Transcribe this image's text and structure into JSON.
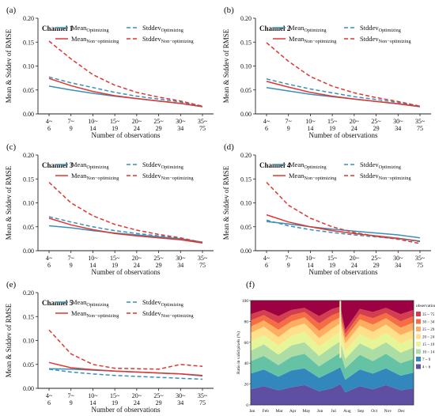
{
  "chart_data": [
    {
      "panel_label": "(a)",
      "type": "line",
      "title": "Channel 1",
      "xlabel": "Number of observations",
      "ylabel": "Mean & Stddev of RMSE",
      "ylim": [
        0,
        0.2
      ],
      "yticks": [
        "0.00",
        "0.05",
        "0.10",
        "0.15",
        "0.20"
      ],
      "categories": [
        "4~6",
        "7~9",
        "10~14",
        "15~19",
        "20~24",
        "25~29",
        "30~34",
        "35~75"
      ],
      "tick_top": [
        "4~",
        "7~",
        "10~",
        "15~",
        "20~",
        "25~",
        "30~",
        "35~"
      ],
      "tick_bottom": [
        "6",
        "9",
        "14",
        "19",
        "24",
        "29",
        "34",
        "75"
      ],
      "legend": {
        "mean_opt": "Mean",
        "mean_opt_sub": "Optimizing",
        "mean_non": "Mean",
        "mean_non_sub": "Non−optimizing",
        "std_opt": "Stddev",
        "std_opt_sub": "Optimizing",
        "std_non": "Stddev",
        "std_non_sub": "Non−optimizing"
      },
      "series": [
        {
          "key": "mean_opt",
          "color": "#3a8fb7",
          "dash": false,
          "values": [
            0.058,
            0.05,
            0.043,
            0.037,
            0.032,
            0.027,
            0.022,
            0.015
          ]
        },
        {
          "key": "mean_non",
          "color": "#e03530",
          "dash": false,
          "values": [
            0.074,
            0.059,
            0.047,
            0.038,
            0.032,
            0.027,
            0.022,
            0.015
          ]
        },
        {
          "key": "std_opt",
          "color": "#3a8fb7",
          "dash": true,
          "values": [
            0.077,
            0.065,
            0.055,
            0.045,
            0.037,
            0.031,
            0.025,
            0.016
          ]
        },
        {
          "key": "std_non",
          "color": "#e03530",
          "dash": true,
          "values": [
            0.152,
            0.115,
            0.082,
            0.06,
            0.045,
            0.035,
            0.027,
            0.016
          ]
        }
      ]
    },
    {
      "panel_label": "(b)",
      "type": "line",
      "title": "Channel 2",
      "xlabel": "Number of observations",
      "ylabel": "Mean & Stddev of RMSE",
      "ylim": [
        0,
        0.2
      ],
      "yticks": [
        "0.00",
        "0.05",
        "0.10",
        "0.15",
        "0.20"
      ],
      "categories": [
        "4~6",
        "7~9",
        "10~14",
        "15~19",
        "20~24",
        "25~29",
        "30~34",
        "35~75"
      ],
      "tick_top": [
        "4~",
        "7~",
        "10~",
        "15~",
        "20~",
        "25~",
        "30~",
        "35~"
      ],
      "tick_bottom": [
        "6",
        "9",
        "14",
        "19",
        "24",
        "29",
        "34",
        "75"
      ],
      "legend": {
        "mean_opt": "Mean",
        "mean_opt_sub": "Optimizing",
        "mean_non": "Mean",
        "mean_non_sub": "Non−optimizing",
        "std_opt": "Stddev",
        "std_opt_sub": "Optimizing",
        "std_non": "Stddev",
        "std_non_sub": "Non−optimizing"
      },
      "series": [
        {
          "key": "mean_opt",
          "color": "#3a8fb7",
          "dash": false,
          "values": [
            0.055,
            0.048,
            0.041,
            0.036,
            0.031,
            0.026,
            0.021,
            0.015
          ]
        },
        {
          "key": "mean_non",
          "color": "#e03530",
          "dash": false,
          "values": [
            0.068,
            0.056,
            0.045,
            0.037,
            0.031,
            0.026,
            0.021,
            0.015
          ]
        },
        {
          "key": "std_opt",
          "color": "#3a8fb7",
          "dash": true,
          "values": [
            0.073,
            0.062,
            0.052,
            0.044,
            0.036,
            0.03,
            0.024,
            0.016
          ]
        },
        {
          "key": "std_non",
          "color": "#e03530",
          "dash": true,
          "values": [
            0.149,
            0.11,
            0.078,
            0.058,
            0.044,
            0.034,
            0.026,
            0.016
          ]
        }
      ]
    },
    {
      "panel_label": "(c)",
      "type": "line",
      "title": "Channel 3",
      "xlabel": "Number of observations",
      "ylabel": "Mean & Stddev of RMSE",
      "ylim": [
        0,
        0.2
      ],
      "yticks": [
        "0.00",
        "0.05",
        "0.10",
        "0.15",
        "0.20"
      ],
      "categories": [
        "4~6",
        "7~9",
        "10~14",
        "15~19",
        "20~24",
        "25~29",
        "30~34",
        "35~75"
      ],
      "tick_top": [
        "4~",
        "7~",
        "10~",
        "15~",
        "20~",
        "25~",
        "30~",
        "35~"
      ],
      "tick_bottom": [
        "6",
        "9",
        "14",
        "19",
        "24",
        "29",
        "34",
        "75"
      ],
      "legend": {
        "mean_opt": "Mean",
        "mean_opt_sub": "Optimizing",
        "mean_non": "Mean",
        "mean_non_sub": "Non−optimizing",
        "std_opt": "Stddev",
        "std_opt_sub": "Optimizing",
        "std_non": "Stddev",
        "std_non_sub": "Non−optimizing"
      },
      "series": [
        {
          "key": "mean_opt",
          "color": "#3a8fb7",
          "dash": false,
          "values": [
            0.052,
            0.048,
            0.042,
            0.037,
            0.033,
            0.029,
            0.025,
            0.018
          ]
        },
        {
          "key": "mean_non",
          "color": "#e03530",
          "dash": false,
          "values": [
            0.068,
            0.054,
            0.044,
            0.036,
            0.031,
            0.027,
            0.023,
            0.016
          ]
        },
        {
          "key": "std_opt",
          "color": "#3a8fb7",
          "dash": true,
          "values": [
            0.071,
            0.06,
            0.05,
            0.042,
            0.036,
            0.031,
            0.026,
            0.017
          ]
        },
        {
          "key": "std_non",
          "color": "#e03530",
          "dash": true,
          "values": [
            0.143,
            0.1,
            0.073,
            0.055,
            0.043,
            0.034,
            0.027,
            0.017
          ]
        }
      ]
    },
    {
      "panel_label": "(d)",
      "type": "line",
      "title": "Channel 4",
      "xlabel": "Number of observations",
      "ylabel": "Mean & Stddev of RMSE",
      "ylim": [
        0,
        0.2
      ],
      "yticks": [
        "0.00",
        "0.05",
        "0.10",
        "0.15",
        "0.20"
      ],
      "categories": [
        "4~6",
        "7~9",
        "10~14",
        "15~19",
        "20~24",
        "25~29",
        "30~34",
        "35~75"
      ],
      "tick_top": [
        "4~",
        "7~",
        "10~",
        "15~",
        "20~",
        "25~",
        "30~",
        "35~"
      ],
      "tick_bottom": [
        "6",
        "9",
        "14",
        "19",
        "24",
        "29",
        "34",
        "75"
      ],
      "legend": {
        "mean_opt": "Mean",
        "mean_opt_sub": "Optimizing",
        "mean_non": "Mean",
        "mean_non_sub": "Non−optimizing",
        "std_opt": "Stddev",
        "std_opt_sub": "Optimizing",
        "std_non": "Stddev",
        "std_non_sub": "Non−optimizing"
      },
      "series": [
        {
          "key": "mean_opt",
          "color": "#3a8fb7",
          "dash": false,
          "values": [
            0.061,
            0.056,
            0.05,
            0.045,
            0.041,
            0.037,
            0.033,
            0.027
          ]
        },
        {
          "key": "mean_non",
          "color": "#e03530",
          "dash": false,
          "values": [
            0.075,
            0.06,
            0.05,
            0.042,
            0.036,
            0.031,
            0.026,
            0.02
          ]
        },
        {
          "key": "std_opt",
          "color": "#3a8fb7",
          "dash": true,
          "values": [
            0.064,
            0.052,
            0.044,
            0.038,
            0.033,
            0.029,
            0.025,
            0.019
          ]
        },
        {
          "key": "std_non",
          "color": "#e03530",
          "dash": true,
          "values": [
            0.143,
            0.095,
            0.068,
            0.05,
            0.038,
            0.03,
            0.024,
            0.015
          ]
        }
      ]
    },
    {
      "panel_label": "(e)",
      "type": "line",
      "title": "Channel 5",
      "xlabel": "Number of observations",
      "ylabel": "Mean & Stddev of RMSE",
      "ylim": [
        0,
        0.2
      ],
      "yticks": [
        "0.00",
        "0.05",
        "0.10",
        "0.15",
        "0.20"
      ],
      "categories": [
        "4~6",
        "7~9",
        "10~14",
        "15~19",
        "20~24",
        "25~29",
        "30~34",
        "35~75"
      ],
      "tick_top": [
        "4~",
        "7~",
        "10~",
        "15~",
        "20~",
        "25~",
        "30~",
        "35~"
      ],
      "tick_bottom": [
        "6",
        "9",
        "14",
        "19",
        "24",
        "29",
        "34",
        "75"
      ],
      "legend": {
        "mean_opt": "Mean",
        "mean_opt_sub": "Optimizing",
        "mean_non": "Mean",
        "mean_non_sub": "Non−optimizing",
        "std_opt": "Stddev",
        "std_opt_sub": "Optimizing",
        "std_non": "Stddev",
        "std_non_sub": "Non−optimizing"
      },
      "series": [
        {
          "key": "mean_opt",
          "color": "#3a8fb7",
          "dash": false,
          "values": [
            0.041,
            0.04,
            0.038,
            0.036,
            0.034,
            0.032,
            0.03,
            0.026
          ]
        },
        {
          "key": "mean_non",
          "color": "#e03530",
          "dash": false,
          "values": [
            0.054,
            0.043,
            0.039,
            0.036,
            0.034,
            0.032,
            0.03,
            0.027
          ]
        },
        {
          "key": "std_opt",
          "color": "#3a8fb7",
          "dash": true,
          "values": [
            0.04,
            0.034,
            0.03,
            0.027,
            0.025,
            0.023,
            0.021,
            0.019
          ]
        },
        {
          "key": "std_non",
          "color": "#e03530",
          "dash": true,
          "values": [
            0.122,
            0.072,
            0.05,
            0.042,
            0.041,
            0.04,
            0.05,
            0.046
          ]
        }
      ]
    },
    {
      "panel_label": "(f)",
      "type": "area",
      "ylabel": "Ratio in valid pixels (%)",
      "ylim": [
        0,
        100
      ],
      "yticks": [
        "0",
        "20",
        "40",
        "60",
        "80",
        "100"
      ],
      "months": [
        "Jan",
        "Feb",
        "Mar",
        "Apr",
        "May",
        "Jun",
        "Jul",
        "Aug",
        "Sep",
        "Oct",
        "Nov",
        "Dec"
      ],
      "legend_title": "observations",
      "legend_items": [
        "35 ~ 75",
        "30 ~ 34",
        "25 ~ 29",
        "20 ~ 24",
        "15 ~ 19",
        "10 ~ 14",
        "7 ~ 9",
        "4 ~ 6"
      ],
      "colors": [
        "#5e4fa2",
        "#3288bd",
        "#66c2a5",
        "#abdda4",
        "#e6f598",
        "#fee08b",
        "#fdae61",
        "#f46d43",
        "#d53e4f",
        "#9e0142"
      ],
      "boundaries": {
        "x": [
          0,
          0.08,
          0.17,
          0.25,
          0.33,
          0.42,
          0.5,
          0.55,
          0.58,
          0.67,
          0.75,
          0.83,
          0.92,
          1.0
        ],
        "layers": [
          [
            15,
            18,
            14,
            17,
            19,
            13,
            16,
            20,
            12,
            18,
            15,
            19,
            14,
            16
          ],
          [
            30,
            34,
            27,
            33,
            35,
            26,
            32,
            36,
            24,
            34,
            30,
            35,
            28,
            31
          ],
          [
            42,
            47,
            38,
            46,
            49,
            37,
            45,
            50,
            35,
            48,
            42,
            49,
            40,
            44
          ],
          [
            52,
            58,
            48,
            57,
            60,
            47,
            56,
            61,
            44,
            59,
            53,
            60,
            50,
            55
          ],
          [
            61,
            67,
            57,
            66,
            70,
            56,
            65,
            70,
            52,
            68,
            62,
            69,
            59,
            64
          ],
          [
            69,
            75,
            65,
            74,
            78,
            64,
            73,
            78,
            59,
            76,
            70,
            77,
            67,
            72
          ],
          [
            75,
            81,
            72,
            80,
            84,
            71,
            80,
            84,
            64,
            82,
            77,
            83,
            74,
            79
          ],
          [
            81,
            86,
            78,
            86,
            89,
            78,
            86,
            89,
            68,
            87,
            83,
            88,
            80,
            85
          ],
          [
            87,
            91,
            85,
            91,
            93,
            85,
            92,
            94,
            72,
            92,
            89,
            93,
            87,
            91
          ]
        ]
      }
    }
  ]
}
